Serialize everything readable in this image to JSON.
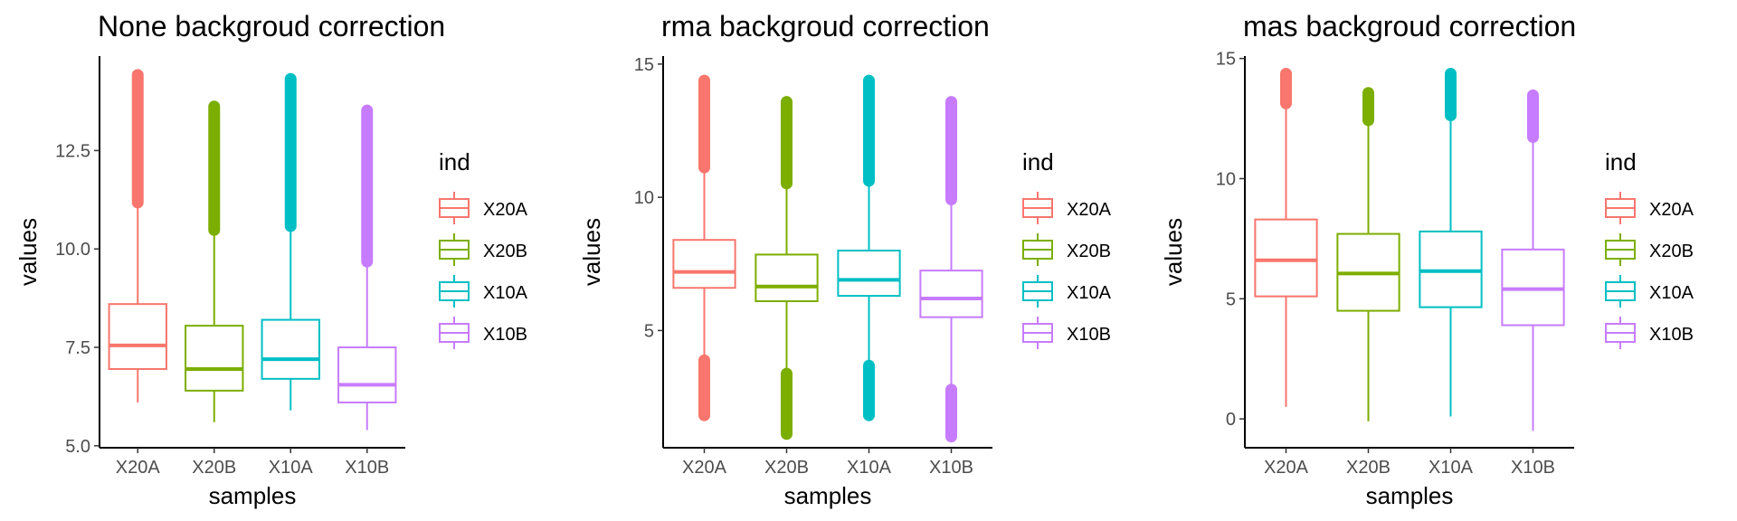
{
  "chart_data": [
    {
      "type": "boxplot",
      "title": "None backgroud correction",
      "xlabel": "samples",
      "ylabel": "values",
      "categories": [
        "X20A",
        "X20B",
        "X10A",
        "X10B"
      ],
      "ylim": [
        4.95,
        14.9
      ],
      "yticks": [
        5.0,
        7.5,
        10.0,
        12.5
      ],
      "ytick_labels": [
        "5.0",
        "7.5",
        "10.0",
        "12.5"
      ],
      "boxes": [
        {
          "whisker_low": 6.1,
          "q1": 6.95,
          "median": 7.55,
          "q3": 8.6,
          "whisker_high": 11.1,
          "outlier_low": null,
          "outlier_high": [
            11.1,
            14.5
          ]
        },
        {
          "whisker_low": 5.6,
          "q1": 6.4,
          "median": 6.95,
          "q3": 8.05,
          "whisker_high": 10.4,
          "outlier_low": null,
          "outlier_high": [
            10.4,
            13.7
          ]
        },
        {
          "whisker_low": 5.9,
          "q1": 6.7,
          "median": 7.2,
          "q3": 8.2,
          "whisker_high": 10.5,
          "outlier_low": null,
          "outlier_high": [
            10.5,
            14.4
          ]
        },
        {
          "whisker_low": 5.4,
          "q1": 6.1,
          "median": 6.55,
          "q3": 7.5,
          "whisker_high": 9.6,
          "outlier_low": null,
          "outlier_high": [
            9.6,
            13.6
          ]
        }
      ]
    },
    {
      "type": "boxplot",
      "title": "rma backgroud correction",
      "xlabel": "samples",
      "ylabel": "values",
      "categories": [
        "X20A",
        "X20B",
        "X10A",
        "X10B"
      ],
      "ylim": [
        0.6,
        15.3
      ],
      "yticks": [
        5,
        10,
        15
      ],
      "ytick_labels": [
        "5",
        "10",
        "15"
      ],
      "boxes": [
        {
          "whisker_low": 4.0,
          "q1": 6.6,
          "median": 7.2,
          "q3": 8.4,
          "whisker_high": 11.0,
          "outlier_low": [
            1.7,
            4.0
          ],
          "outlier_high": [
            11.0,
            14.5
          ]
        },
        {
          "whisker_low": 3.5,
          "q1": 6.1,
          "median": 6.65,
          "q3": 7.85,
          "whisker_high": 10.4,
          "outlier_low": [
            1.0,
            3.5
          ],
          "outlier_high": [
            10.4,
            13.7
          ]
        },
        {
          "whisker_low": 3.8,
          "q1": 6.3,
          "median": 6.9,
          "q3": 8.0,
          "whisker_high": 10.5,
          "outlier_low": [
            1.7,
            3.8
          ],
          "outlier_high": [
            10.5,
            14.5
          ]
        },
        {
          "whisker_low": 2.9,
          "q1": 5.5,
          "median": 6.2,
          "q3": 7.25,
          "whisker_high": 9.8,
          "outlier_low": [
            0.9,
            2.9
          ],
          "outlier_high": [
            9.8,
            13.7
          ]
        }
      ]
    },
    {
      "type": "boxplot",
      "title": "mas backgroud correction",
      "xlabel": "samples",
      "ylabel": "values",
      "categories": [
        "X20A",
        "X20B",
        "X10A",
        "X10B"
      ],
      "ylim": [
        -1.2,
        15.1
      ],
      "yticks": [
        0,
        5,
        10,
        15
      ],
      "ytick_labels": [
        "0",
        "5",
        "10",
        "15"
      ],
      "boxes": [
        {
          "whisker_low": 0.5,
          "q1": 5.1,
          "median": 6.6,
          "q3": 8.3,
          "whisker_high": 13.0,
          "outlier_low": null,
          "outlier_high": [
            13.0,
            14.5
          ]
        },
        {
          "whisker_low": -0.1,
          "q1": 4.5,
          "median": 6.05,
          "q3": 7.7,
          "whisker_high": 12.3,
          "outlier_low": null,
          "outlier_high": [
            12.3,
            13.7
          ]
        },
        {
          "whisker_low": 0.1,
          "q1": 4.65,
          "median": 6.15,
          "q3": 7.8,
          "whisker_high": 12.5,
          "outlier_low": null,
          "outlier_high": [
            12.5,
            14.5
          ]
        },
        {
          "whisker_low": -0.5,
          "q1": 3.9,
          "median": 5.4,
          "q3": 7.05,
          "whisker_high": 11.6,
          "outlier_low": null,
          "outlier_high": [
            11.6,
            13.6
          ]
        }
      ]
    }
  ],
  "legend": {
    "title": "ind",
    "items": [
      {
        "label": "X20A",
        "color": "#F8766D"
      },
      {
        "label": "X20B",
        "color": "#7CAE00"
      },
      {
        "label": "X10A",
        "color": "#00BFC4"
      },
      {
        "label": "X10B",
        "color": "#C77CFF"
      }
    ]
  }
}
